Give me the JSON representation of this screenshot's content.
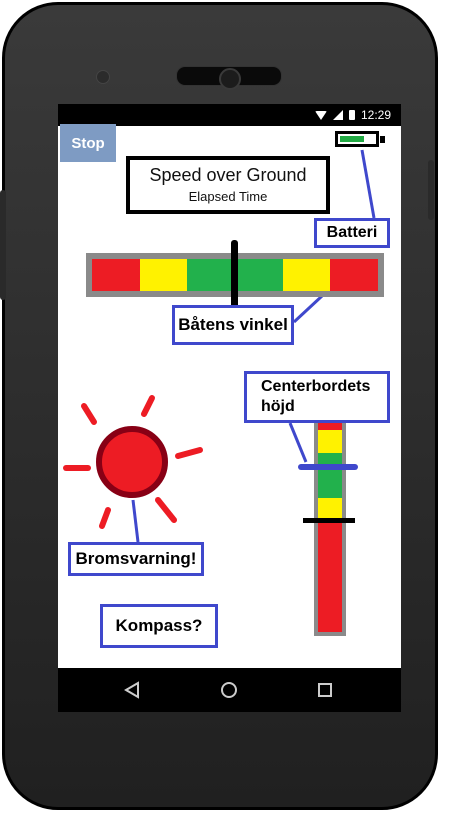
{
  "status_bar": {
    "time": "12:29"
  },
  "app": {
    "stop_button": "Stop",
    "speed_title": "Speed over Ground",
    "elapsed_label": "Elapsed Time",
    "battery_level": 0.7
  },
  "callouts": {
    "battery": "Batteri",
    "boat_angle": "Båtens vinkel",
    "centerboard_line1": "Centerbordets",
    "centerboard_line2": "höjd",
    "brake_warning": "Bromsvarning!",
    "compass": "Kompass?"
  },
  "colors": {
    "red": "#ed1c24",
    "yellow": "#fff200",
    "green": "#22b14c",
    "callout_border": "#3f48cc",
    "stop_button": "#7e9bc3"
  },
  "angle_gauge": {
    "segments": [
      "red",
      "yellow",
      "green",
      "green",
      "yellow",
      "red"
    ],
    "marker_position": 0.5
  },
  "height_gauge": {
    "segments": [
      "red",
      "yellow",
      "green",
      "green",
      "yellow",
      "red",
      "red",
      "red",
      "red",
      "red"
    ]
  },
  "icons": {
    "nav_back": "back-triangle-icon",
    "nav_home": "home-circle-icon",
    "nav_recent": "recent-square-icon",
    "brake_warning": "red-sun-warning-icon"
  }
}
